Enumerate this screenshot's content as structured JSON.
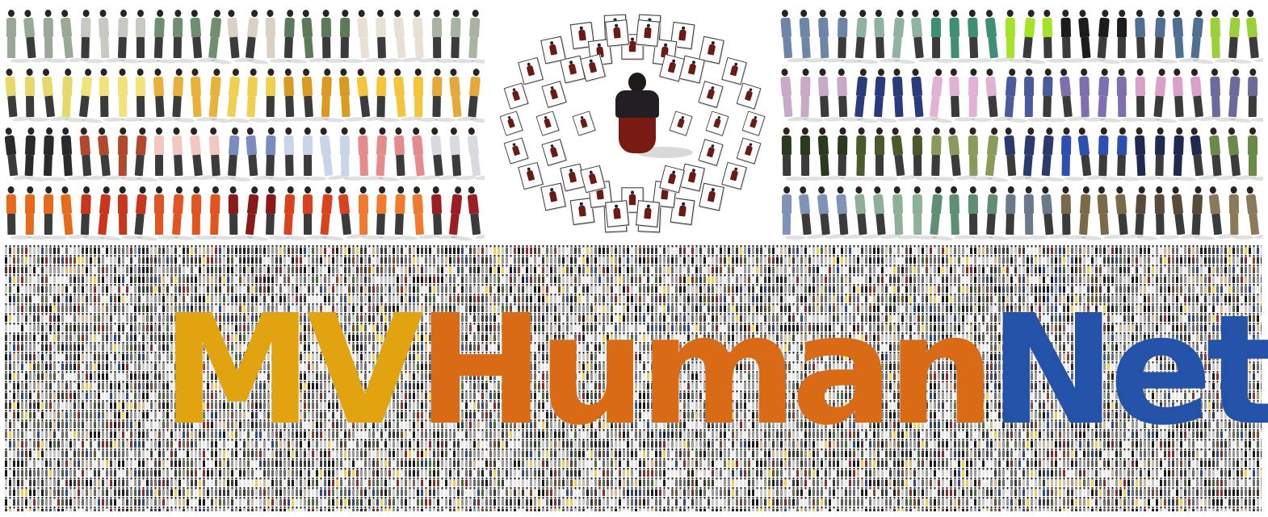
{
  "title": {
    "segments": [
      {
        "text": "MV",
        "color": "#e1a410"
      },
      {
        "text": "Human",
        "color": "#d96a16"
      },
      {
        "text": "Net",
        "color": "#2452a8"
      }
    ]
  },
  "palette": {
    "left_rows": [
      [
        "#9aa898",
        "#c9c9c2",
        "#6f8f6e",
        "#d9d2c2",
        "#5c7a5a",
        "#e8e1d3",
        "#a8b3a1"
      ],
      [
        "#e6d86a",
        "#f2e27a",
        "#e8b23a",
        "#f0d050",
        "#d99a22",
        "#f4c53a",
        "#e5a93a"
      ],
      [
        "#2a2a2a",
        "#b14a2c",
        "#f2c7c0",
        "#7a8cc0",
        "#c8d4e8",
        "#e48c8c",
        "#d9d9e0"
      ],
      [
        "#e46a1c",
        "#c8361c",
        "#e25520",
        "#8a1a1a",
        "#d8431e",
        "#f07a30",
        "#9a1e24"
      ]
    ],
    "right_rows": [
      [
        "#6d86a8",
        "#8fb3a0",
        "#3f8f73",
        "#a5e22a",
        "#1c1c1c",
        "#4f6e92",
        "#9bd03a"
      ],
      [
        "#c9a8c8",
        "#2a3a7a",
        "#e1b2d6",
        "#4a5a9a",
        "#7d6fb0",
        "#d9a0c8",
        "#6b6b9a"
      ],
      [
        "#2b3a1e",
        "#4a5a2a",
        "#8a9a5a",
        "#2a3a6a",
        "#2c4fb0",
        "#1e2a50",
        "#6a8a4a"
      ],
      [
        "#7f92b8",
        "#8fb098",
        "#5e8f72",
        "#6a7a8a",
        "#7a6a4a",
        "#5a4a3a",
        "#8a7a5a"
      ]
    ],
    "mosaic": [
      "#1b1b1b",
      "#3a3a3a",
      "#6b6b6b",
      "#9a9a9a",
      "#c8c8c8",
      "#e9e9e9",
      "#7a4a2a",
      "#2a4a8a",
      "#8a2a2a",
      "#d9b98a",
      "#4a6a3a",
      "#f2d04a"
    ]
  }
}
